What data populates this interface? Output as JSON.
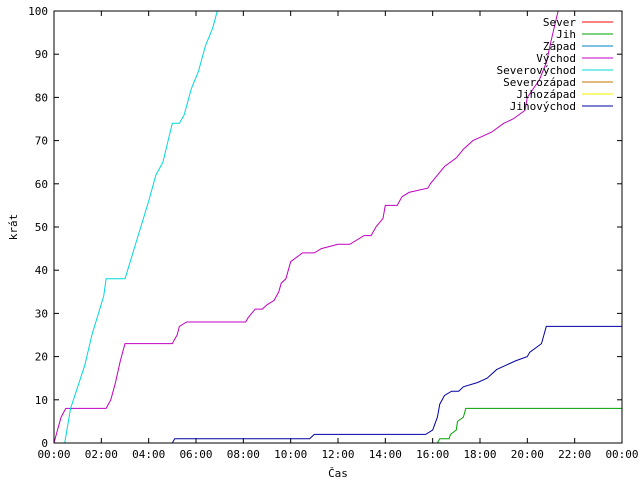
{
  "chart_data": {
    "type": "line",
    "title": "",
    "xlabel": "Čas",
    "ylabel": "krát",
    "xlim": [
      0,
      24
    ],
    "ylim": [
      0,
      100
    ],
    "x_ticks": [
      "00:00",
      "02:00",
      "04:00",
      "06:00",
      "08:00",
      "10:00",
      "12:00",
      "14:00",
      "16:00",
      "18:00",
      "20:00",
      "22:00",
      "00:00"
    ],
    "y_ticks": [
      0,
      10,
      20,
      30,
      40,
      50,
      60,
      70,
      80,
      90,
      100
    ],
    "legend_position": "top-right",
    "series": [
      {
        "name": "Sever",
        "color": "#ff0000",
        "x": [],
        "y": []
      },
      {
        "name": "Jih",
        "color": "#00a000",
        "x": [
          0,
          16.2,
          16.3,
          16.4,
          16.7,
          16.75,
          17.0,
          17.05,
          17.3,
          17.4,
          24
        ],
        "y": [
          0,
          0,
          1,
          1,
          1,
          2,
          3,
          5,
          6,
          8,
          8
        ]
      },
      {
        "name": "Západ",
        "color": "#0080c0",
        "x": [],
        "y": []
      },
      {
        "name": "Východ",
        "color": "#c000c0",
        "x": [
          0,
          0.15,
          0.3,
          0.5,
          2.2,
          2.4,
          2.6,
          2.8,
          3.0,
          5.0,
          5.1,
          5.2,
          5.3,
          5.6,
          8.1,
          8.2,
          8.5,
          8.8,
          9.0,
          9.3,
          9.5,
          9.6,
          9.8,
          10.0,
          10.5,
          11.0,
          11.3,
          12.0,
          12.5,
          13.1,
          13.4,
          13.6,
          13.9,
          14.0,
          14.5,
          14.7,
          15.0,
          15.8,
          15.9,
          16.2,
          16.5,
          17.0,
          17.3,
          17.7,
          18.1,
          18.5,
          19.0,
          19.4,
          19.9,
          20.0,
          20.5,
          20.8,
          21.0,
          21.3
        ],
        "y": [
          0,
          3,
          6,
          8,
          8,
          10,
          14,
          19,
          23,
          23,
          24,
          25,
          27,
          28,
          28,
          29,
          31,
          31,
          32,
          33,
          35,
          37,
          38,
          42,
          44,
          44,
          45,
          46,
          46,
          48,
          48,
          50,
          52,
          55,
          55,
          57,
          58,
          59,
          60,
          62,
          64,
          66,
          68,
          70,
          71,
          72,
          74,
          75,
          77,
          80,
          84,
          88,
          93,
          100
        ]
      },
      {
        "name": "Severovýchod",
        "color": "#00d8d8",
        "x": [
          0,
          0.45,
          0.7,
          1.0,
          1.3,
          1.6,
          2.1,
          2.2,
          3.0,
          3.5,
          4.0,
          4.3,
          4.6,
          5.0,
          5.3,
          5.5,
          5.8,
          6.1,
          6.4,
          6.7,
          6.9
        ],
        "y": [
          0,
          0,
          8,
          13,
          18,
          25,
          34,
          38,
          38,
          47,
          56,
          62,
          65,
          74,
          74,
          76,
          82,
          86,
          92,
          96,
          100
        ]
      },
      {
        "name": "Severozápad",
        "color": "#c07000",
        "x": [],
        "y": []
      },
      {
        "name": "Jihozápad",
        "color": "#f0f000",
        "x": [],
        "y": []
      },
      {
        "name": "Jihovýchod",
        "color": "#0000a0",
        "x": [
          0,
          5.0,
          5.1,
          10.8,
          11.0,
          15.7,
          16.0,
          16.2,
          16.3,
          16.5,
          16.8,
          17.1,
          17.3,
          17.9,
          18.3,
          18.7,
          19.1,
          19.5,
          20.0,
          20.1,
          20.6,
          20.7,
          20.8,
          24
        ],
        "y": [
          0,
          0,
          1,
          1,
          2,
          2,
          3,
          6,
          9,
          11,
          12,
          12,
          13,
          14,
          15,
          17,
          18,
          19,
          20,
          21,
          23,
          25,
          27,
          27
        ]
      }
    ]
  }
}
